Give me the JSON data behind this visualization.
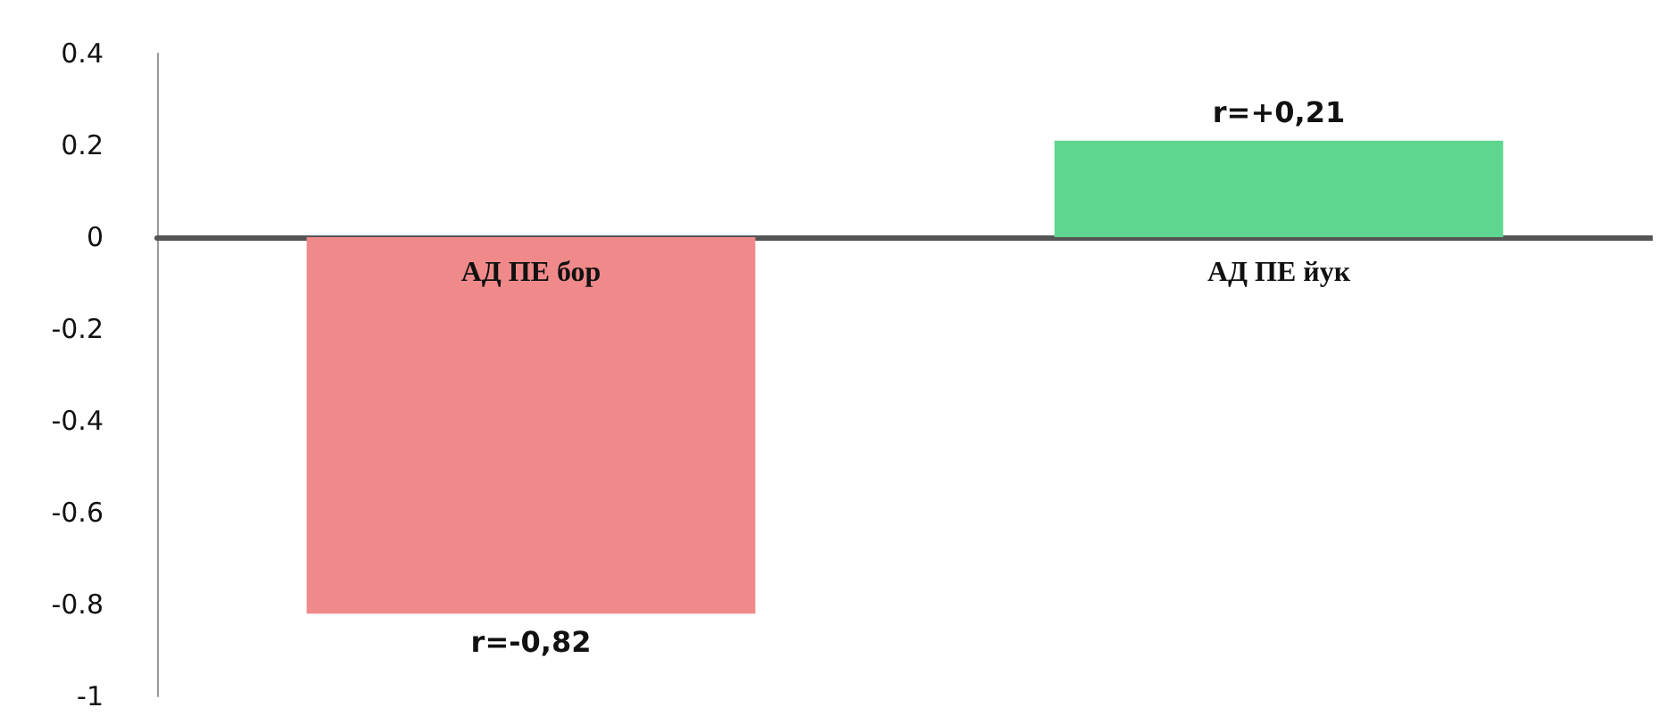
{
  "chart_data": {
    "type": "bar",
    "categories": [
      "АД ПЕ бор",
      "АД ПЕ йук"
    ],
    "values": [
      -0.82,
      0.21
    ],
    "value_labels": [
      "r=-0,82",
      "r=+0,21"
    ],
    "colors": [
      "#f08a8a",
      "#5fd68f"
    ],
    "ylim": [
      -1,
      0.4
    ],
    "yticks": [
      -1,
      -0.8,
      -0.6,
      -0.4,
      -0.2,
      0,
      0.2,
      0.4
    ]
  }
}
